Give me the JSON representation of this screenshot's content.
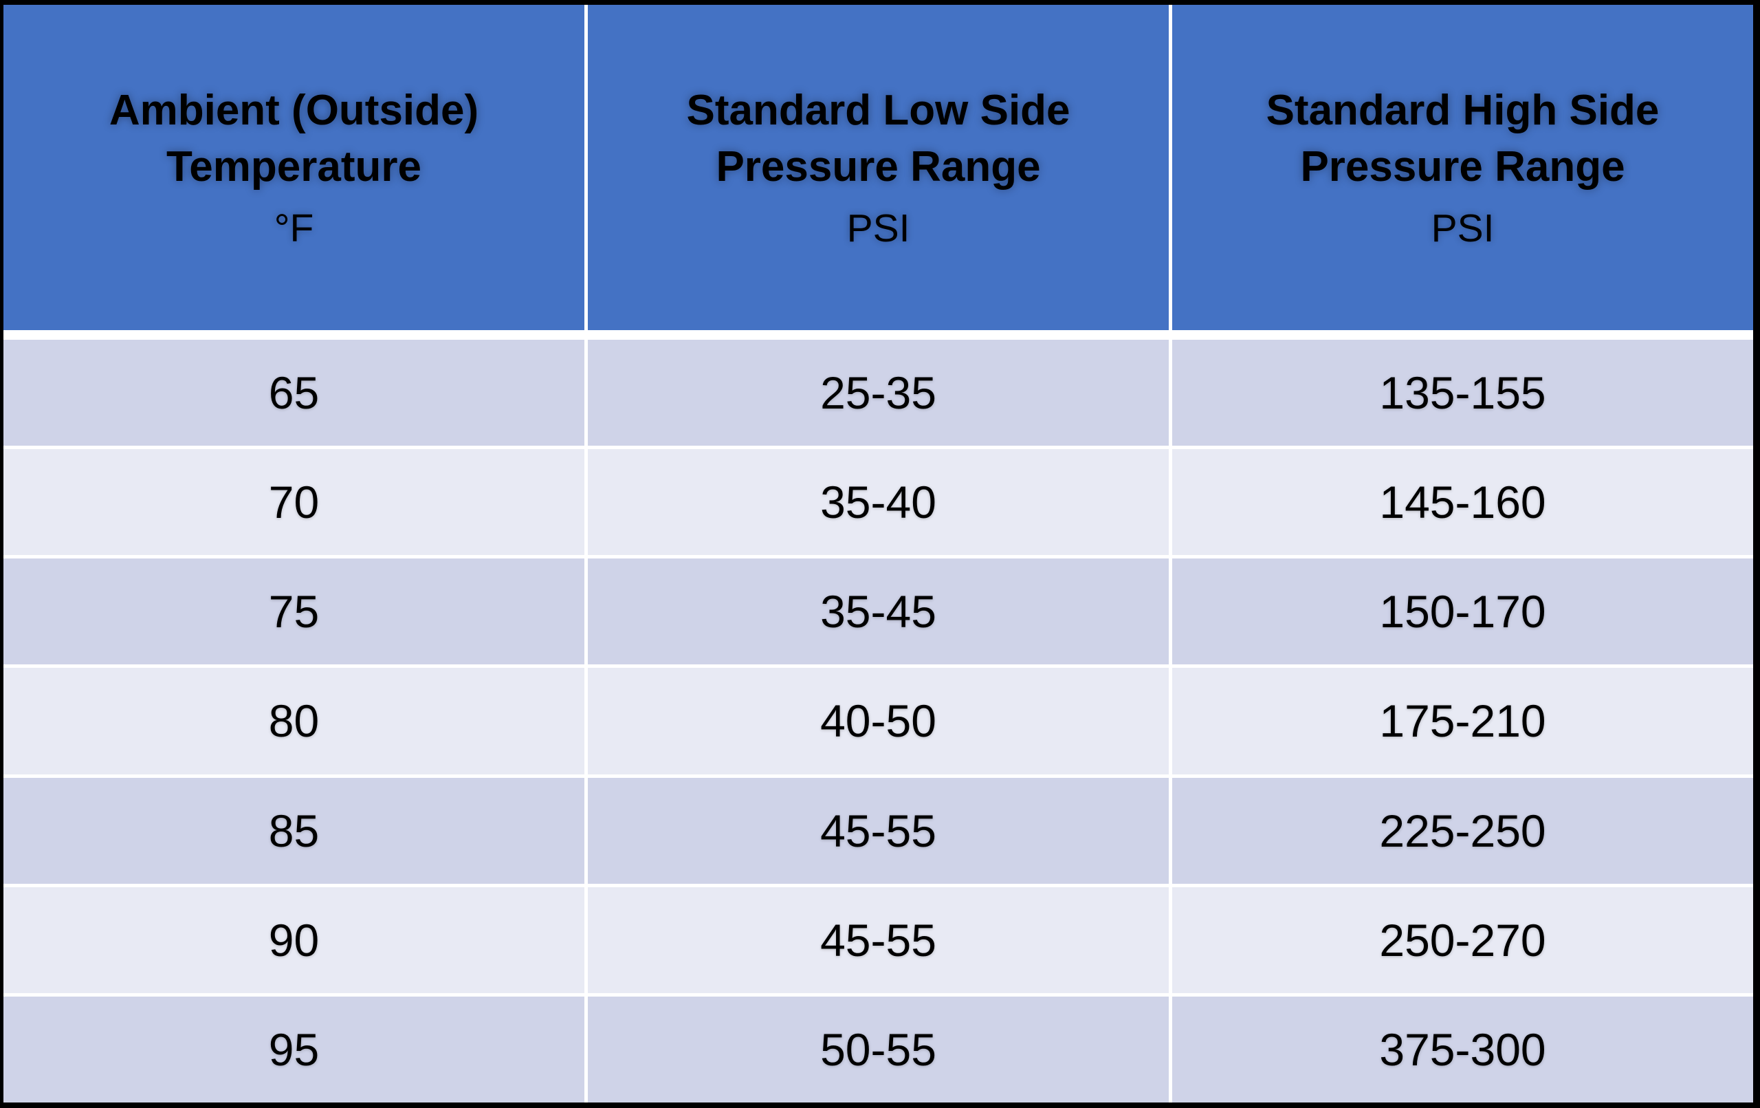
{
  "table": {
    "columns": [
      {
        "label": "Ambient (Outside) Temperature",
        "unit": "°F"
      },
      {
        "label": "Standard Low Side Pressure Range",
        "unit": "PSI"
      },
      {
        "label": "Standard High Side Pressure Range",
        "unit": "PSI"
      }
    ]
  },
  "chart_data": {
    "type": "table",
    "columns": [
      "Ambient (Outside) Temperature °F",
      "Standard Low Side Pressure Range PSI",
      "Standard High Side Pressure Range PSI"
    ],
    "rows": [
      [
        "65",
        "25-35",
        "135-155"
      ],
      [
        "70",
        "35-40",
        "145-160"
      ],
      [
        "75",
        "35-45",
        "150-170"
      ],
      [
        "80",
        "40-50",
        "175-210"
      ],
      [
        "85",
        "45-55",
        "225-250"
      ],
      [
        "90",
        "45-55",
        "250-270"
      ],
      [
        "95",
        "50-55",
        "375-300"
      ]
    ]
  },
  "colors": {
    "header_bg": "#4472c4",
    "row_odd_bg": "#cfd3e8",
    "row_even_bg": "#e8eaf4",
    "divider": "#ffffff",
    "border": "#000000",
    "text": "#000000"
  }
}
